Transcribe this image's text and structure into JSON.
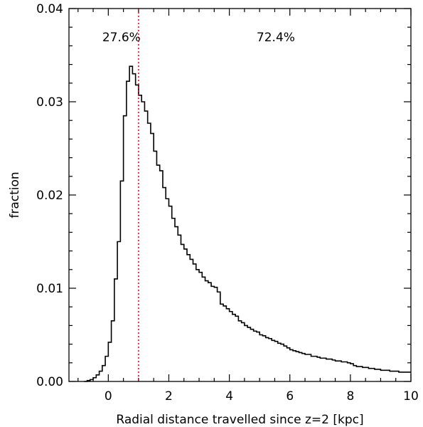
{
  "chart_data": {
    "type": "step-histogram",
    "xlabel": "Radial distance travelled since z=2 [kpc]",
    "ylabel": "fraction",
    "xlim": [
      -1.3,
      10
    ],
    "ylim": [
      0,
      0.04
    ],
    "xticks": [
      0,
      2,
      4,
      6,
      8,
      10
    ],
    "xtick_labels": [
      "0",
      "2",
      "4",
      "6",
      "8",
      "10"
    ],
    "yticks": [
      0.0,
      0.01,
      0.02,
      0.03,
      0.04
    ],
    "ytick_labels": [
      "0.00",
      "0.01",
      "0.02",
      "0.03",
      "0.04"
    ],
    "annotations": [
      {
        "text": "27.6%",
        "x": -0.2,
        "y": 0.0365
      },
      {
        "text": "72.4%",
        "x": 4.9,
        "y": 0.0365
      }
    ],
    "reference_line": {
      "x": 1.0,
      "color": "#e0001b",
      "style": "dotted"
    },
    "bin_width": 0.1,
    "x": [
      -0.8,
      -0.7,
      -0.6,
      -0.5,
      -0.4,
      -0.3,
      -0.2,
      -0.1,
      0.0,
      0.1,
      0.2,
      0.3,
      0.4,
      0.5,
      0.6,
      0.7,
      0.8,
      0.9,
      1.0,
      1.1,
      1.2,
      1.3,
      1.4,
      1.5,
      1.6,
      1.7,
      1.8,
      1.9,
      2.0,
      2.1,
      2.2,
      2.3,
      2.4,
      2.5,
      2.6,
      2.7,
      2.8,
      2.9,
      3.0,
      3.1,
      3.2,
      3.3,
      3.4,
      3.5,
      3.6,
      3.7,
      3.8,
      3.9,
      4.0,
      4.1,
      4.2,
      4.3,
      4.4,
      4.5,
      4.6,
      4.7,
      4.8,
      4.9,
      5.0,
      5.1,
      5.2,
      5.3,
      5.4,
      5.5,
      5.6,
      5.7,
      5.8,
      5.9,
      6.0,
      6.1,
      6.2,
      6.3,
      6.4,
      6.5,
      6.6,
      6.7,
      6.8,
      6.9,
      7.0,
      7.1,
      7.2,
      7.3,
      7.4,
      7.5,
      7.6,
      7.7,
      7.8,
      7.9,
      8.0,
      8.1,
      8.2,
      8.3,
      8.4,
      8.5,
      8.6,
      8.7,
      8.8,
      8.9,
      9.0,
      9.1,
      9.2,
      9.3,
      9.4,
      9.5,
      9.6,
      9.7,
      9.8,
      9.9
    ],
    "values": [
      0.0,
      0.0001,
      0.0002,
      0.0004,
      0.0007,
      0.0011,
      0.0017,
      0.0027,
      0.0042,
      0.0065,
      0.011,
      0.015,
      0.0215,
      0.0285,
      0.0322,
      0.0338,
      0.033,
      0.0318,
      0.0307,
      0.03,
      0.029,
      0.0277,
      0.0266,
      0.0247,
      0.0232,
      0.0226,
      0.0208,
      0.0196,
      0.0188,
      0.0175,
      0.0166,
      0.0157,
      0.0147,
      0.0142,
      0.0136,
      0.0131,
      0.0126,
      0.012,
      0.0117,
      0.0112,
      0.0108,
      0.0106,
      0.0102,
      0.0101,
      0.0096,
      0.0083,
      0.0081,
      0.0078,
      0.0075,
      0.0072,
      0.007,
      0.0065,
      0.0063,
      0.006,
      0.0058,
      0.0056,
      0.0054,
      0.0053,
      0.005,
      0.0049,
      0.0047,
      0.0046,
      0.0044,
      0.0043,
      0.0041,
      0.004,
      0.0038,
      0.0036,
      0.0034,
      0.0033,
      0.0032,
      0.0031,
      0.003,
      0.0029,
      0.0029,
      0.0027,
      0.0027,
      0.0026,
      0.0025,
      0.0025,
      0.0024,
      0.0024,
      0.0023,
      0.0022,
      0.0022,
      0.0021,
      0.0021,
      0.002,
      0.0019,
      0.0017,
      0.0016,
      0.0016,
      0.0015,
      0.0015,
      0.0014,
      0.0014,
      0.0013,
      0.0013,
      0.0012,
      0.0012,
      0.0012,
      0.0011,
      0.0011,
      0.0011,
      0.001,
      0.001,
      0.001,
      0.001
    ]
  }
}
